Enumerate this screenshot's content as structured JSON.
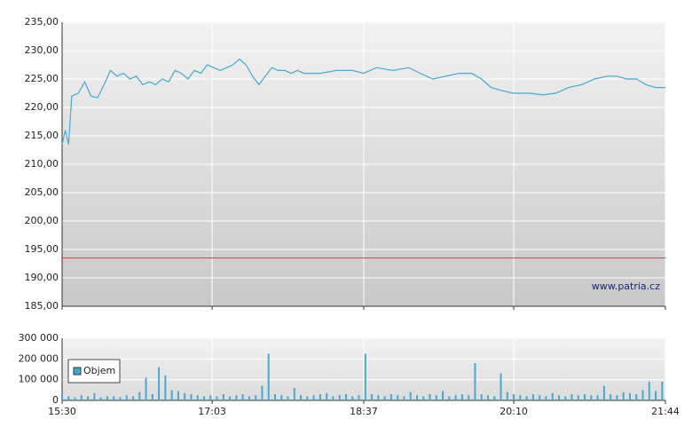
{
  "chart_data": [
    {
      "type": "line",
      "color": "#4aa8d0",
      "xlim": [
        "15:30",
        "21:44"
      ],
      "ylim": [
        185,
        235
      ],
      "yticks": [
        {
          "value": 185,
          "label": "185,00"
        },
        {
          "value": 190,
          "label": "190,00"
        },
        {
          "value": 195,
          "label": "195,00"
        },
        {
          "value": 200,
          "label": "200,00"
        },
        {
          "value": 205,
          "label": "205,00"
        },
        {
          "value": 210,
          "label": "210,00"
        },
        {
          "value": 215,
          "label": "215,00"
        },
        {
          "value": 220,
          "label": "220,00"
        },
        {
          "value": 225,
          "label": "225,00"
        },
        {
          "value": 230,
          "label": "230,00"
        },
        {
          "value": 235,
          "label": "235,00"
        }
      ],
      "grid": true,
      "reference_line": 193.5,
      "reference_color": "#d04040",
      "annotation": "www.patria.cz",
      "x": [
        "15:30",
        "15:32",
        "15:34",
        "15:36",
        "15:40",
        "15:44",
        "15:48",
        "15:52",
        "15:56",
        "16:00",
        "16:04",
        "16:08",
        "16:12",
        "16:16",
        "16:20",
        "16:24",
        "16:28",
        "16:32",
        "16:36",
        "16:40",
        "16:44",
        "16:48",
        "16:52",
        "16:56",
        "17:00",
        "17:04",
        "17:08",
        "17:12",
        "17:16",
        "17:20",
        "17:24",
        "17:28",
        "17:32",
        "17:36",
        "17:40",
        "17:44",
        "17:48",
        "17:52",
        "17:56",
        "18:00",
        "18:10",
        "18:20",
        "18:30",
        "18:37",
        "18:45",
        "18:55",
        "19:05",
        "19:12",
        "19:20",
        "19:28",
        "19:36",
        "19:44",
        "19:50",
        "19:56",
        "20:02",
        "20:10",
        "20:20",
        "20:28",
        "20:36",
        "20:44",
        "20:52",
        "21:00",
        "21:08",
        "21:14",
        "21:20",
        "21:26",
        "21:32",
        "21:38",
        "21:44"
      ],
      "values": [
        213.5,
        216,
        213.5,
        222,
        222.5,
        224.5,
        222,
        221.7,
        224,
        226.5,
        225.5,
        226,
        225,
        225.5,
        224,
        224.5,
        224,
        225,
        224.5,
        226.5,
        226,
        225,
        226.5,
        226,
        227.5,
        227,
        226.5,
        227,
        227.5,
        228.5,
        227.5,
        225.5,
        224,
        225.5,
        227,
        226.5,
        226.5,
        226,
        226.5,
        226,
        226,
        226.5,
        226.5,
        226,
        227,
        226.5,
        227,
        226,
        225,
        225.5,
        226,
        226,
        225,
        223.5,
        223,
        222.5,
        222.5,
        222.2,
        222.5,
        223.5,
        224,
        225,
        225.5,
        225.5,
        225,
        225,
        224,
        223.5,
        223.5
      ]
    },
    {
      "type": "bar",
      "color": "#4aa8d0",
      "legend": "Objem",
      "xlim": [
        "15:30",
        "21:44"
      ],
      "ylim": [
        0,
        300000
      ],
      "yticks": [
        0,
        {
          "value": 100000,
          "label": "100 000"
        },
        {
          "value": 200000,
          "label": "200 000"
        },
        {
          "value": 300000,
          "label": "300 000"
        }
      ],
      "xticks": [
        "15:30",
        "17:03",
        "18:37",
        "20:10",
        "21:44"
      ],
      "grid": true,
      "x": [
        "15:30",
        "15:34",
        "15:38",
        "15:42",
        "15:46",
        "15:50",
        "15:54",
        "15:58",
        "16:02",
        "16:06",
        "16:10",
        "16:14",
        "16:18",
        "16:22",
        "16:26",
        "16:30",
        "16:34",
        "16:38",
        "16:42",
        "16:46",
        "16:50",
        "16:54",
        "16:58",
        "17:02",
        "17:06",
        "17:10",
        "17:14",
        "17:18",
        "17:22",
        "17:26",
        "17:30",
        "17:34",
        "17:38",
        "17:42",
        "17:46",
        "17:50",
        "17:54",
        "17:58",
        "18:02",
        "18:06",
        "18:10",
        "18:14",
        "18:18",
        "18:22",
        "18:26",
        "18:30",
        "18:34",
        "18:38",
        "18:42",
        "18:46",
        "18:50",
        "18:54",
        "18:58",
        "19:02",
        "19:06",
        "19:10",
        "19:14",
        "19:18",
        "19:22",
        "19:26",
        "19:30",
        "19:34",
        "19:38",
        "19:42",
        "19:46",
        "19:50",
        "19:54",
        "19:58",
        "20:02",
        "20:06",
        "20:10",
        "20:14",
        "20:18",
        "20:22",
        "20:26",
        "20:30",
        "20:34",
        "20:38",
        "20:42",
        "20:46",
        "20:50",
        "20:54",
        "20:58",
        "21:02",
        "21:06",
        "21:10",
        "21:14",
        "21:18",
        "21:22",
        "21:26",
        "21:30",
        "21:34",
        "21:38",
        "21:42"
      ],
      "values": [
        30000,
        20000,
        15000,
        25000,
        20000,
        35000,
        15000,
        20000,
        20000,
        15000,
        25000,
        20000,
        40000,
        110000,
        30000,
        160000,
        120000,
        50000,
        45000,
        35000,
        30000,
        25000,
        20000,
        25000,
        20000,
        30000,
        20000,
        25000,
        30000,
        20000,
        25000,
        70000,
        225000,
        30000,
        25000,
        20000,
        60000,
        25000,
        20000,
        25000,
        30000,
        35000,
        20000,
        25000,
        30000,
        20000,
        25000,
        225000,
        30000,
        25000,
        20000,
        30000,
        25000,
        20000,
        40000,
        25000,
        20000,
        30000,
        25000,
        45000,
        20000,
        25000,
        30000,
        25000,
        180000,
        30000,
        25000,
        20000,
        130000,
        40000,
        30000,
        25000,
        20000,
        30000,
        25000,
        20000,
        35000,
        25000,
        20000,
        30000,
        25000,
        30000,
        25000,
        25000,
        70000,
        30000,
        25000,
        40000,
        35000,
        30000,
        50000,
        90000,
        45000,
        90000
      ]
    }
  ]
}
